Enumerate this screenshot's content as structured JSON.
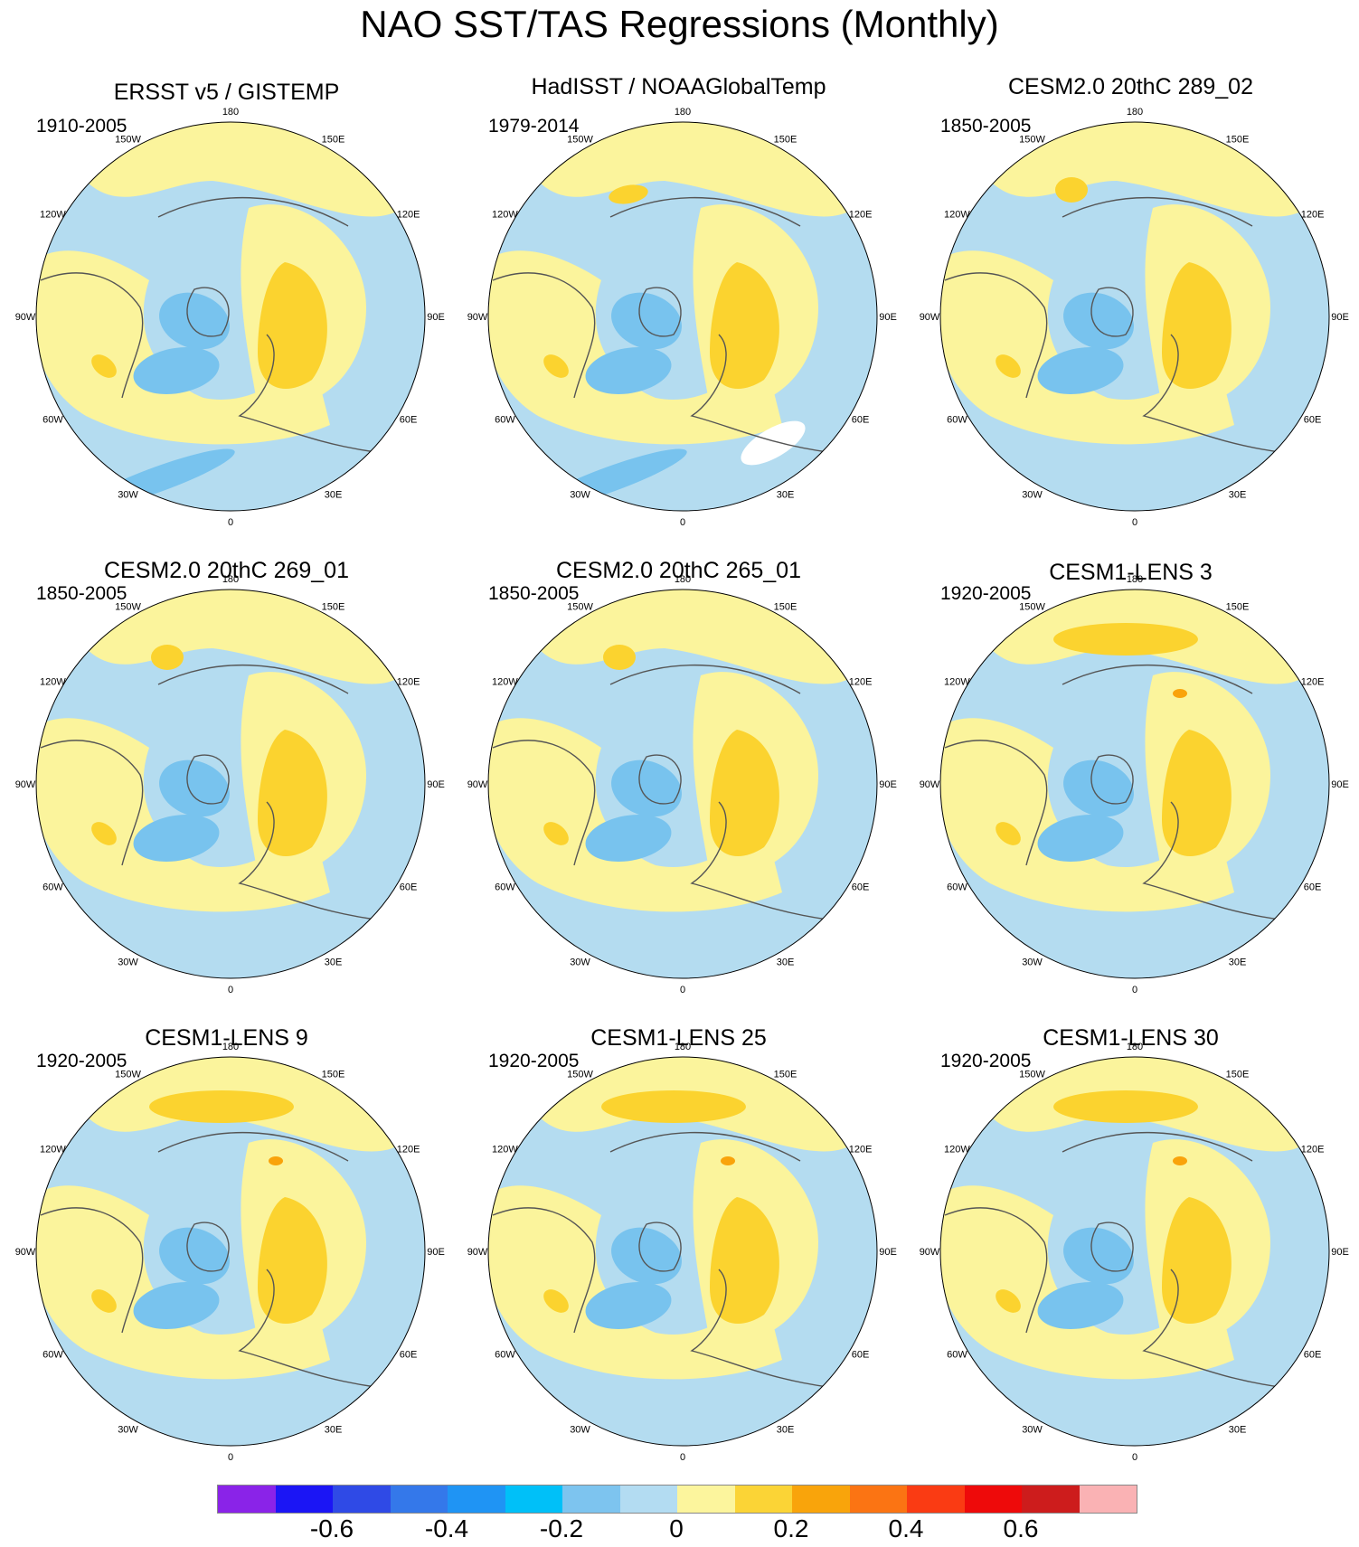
{
  "title": "NAO SST/TAS Regressions (Monthly)",
  "colors": {
    "light_blue": "#b4dcf0",
    "mid_blue": "#78c3ee",
    "pale_yellow": "#fbf49c",
    "gold": "#fbd32f",
    "orange": "#f9a30b",
    "coast": "#555555"
  },
  "lon_labels": {
    "top": "180",
    "upper_left": "150W",
    "upper_right": "150E",
    "left_high": "120W",
    "right_high": "120E",
    "left_mid": "90W",
    "right_mid": "90E",
    "left_low": "60W",
    "right_low": "60E",
    "lower_left": "30W",
    "lower_right": "30E",
    "bottom": "0"
  },
  "panels": [
    {
      "title": "ERSST v5 / GISTEMP",
      "period": "1910-2005",
      "variant": "obs1"
    },
    {
      "title": "HadISST / NOAAGlobalTemp",
      "period": "1979-2014",
      "variant": "obs2"
    },
    {
      "title": "CESM2.0 20thC 289_02",
      "period": "1850-2005",
      "variant": "model"
    },
    {
      "title": "CESM2.0 20thC 269_01",
      "period": "1850-2005",
      "variant": "model"
    },
    {
      "title": "CESM2.0 20thC 265_01",
      "period": "1850-2005",
      "variant": "model"
    },
    {
      "title": "CESM1-LENS 3",
      "period": "1920-2005",
      "variant": "lens"
    },
    {
      "title": "CESM1-LENS 9",
      "period": "1920-2005",
      "variant": "lens"
    },
    {
      "title": "CESM1-LENS 25",
      "period": "1920-2005",
      "variant": "lens"
    },
    {
      "title": "CESM1-LENS 30",
      "period": "1920-2005",
      "variant": "lens"
    }
  ],
  "colorbar": {
    "colors": [
      "#8a23e8",
      "#1b15f5",
      "#2f4ae6",
      "#3478ea",
      "#1f94f4",
      "#00c0f8",
      "#7dc4ef",
      "#b3dcf2",
      "#fcf59d",
      "#fbd436",
      "#f9a40b",
      "#fb7413",
      "#fa3b13",
      "#ee0a0a",
      "#cd1c1c",
      "#fab2b4"
    ],
    "labels": [
      "-0.6",
      "-0.4",
      "-0.2",
      "0",
      "0.2",
      "0.4",
      "0.6"
    ]
  }
}
